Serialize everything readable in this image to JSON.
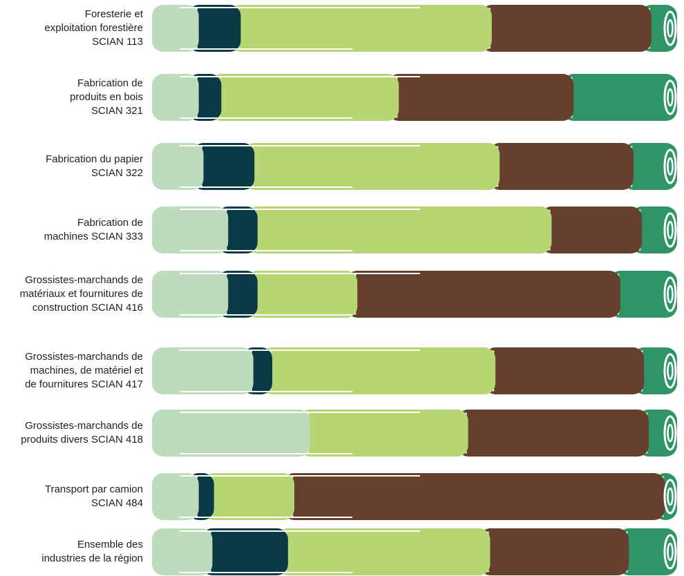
{
  "chart_data": {
    "type": "bar",
    "stacked": true,
    "percent": true,
    "categories": [
      [
        "Foresterie et",
        "exploitation forestière",
        "SCIAN 113"
      ],
      [
        "Fabrication de",
        "produits en bois",
        "SCIAN 321"
      ],
      [
        "Fabrication du papier",
        "SCIAN 322"
      ],
      [
        "Fabrication de",
        "machines SCIAN 333"
      ],
      [
        "Grossistes-marchands de",
        "matériaux et fournitures de",
        "construction SCIAN 416"
      ],
      [
        "Grossistes-marchands de",
        "machines, de matériel et",
        "de fournitures SCIAN 417"
      ],
      [
        "Grossistes-marchands de",
        "produits divers SCIAN 418"
      ],
      [
        "Transport par camion",
        "SCIAN 484"
      ],
      [
        "Ensemble des",
        "industries de la région"
      ]
    ],
    "series": [
      {
        "color": "#bcdcbc",
        "values": [
          6.8,
          6.8,
          7.7,
          12.4,
          12.4,
          17.2,
          28.0,
          6.8,
          9.4
        ]
      },
      {
        "color": "#0b3a47",
        "values": [
          8.0,
          4.3,
          9.7,
          5.6,
          5.6,
          3.6,
          0.0,
          2.9,
          14.4
        ]
      },
      {
        "color": "#b5d672",
        "values": [
          47.8,
          33.8,
          46.7,
          56.0,
          19.0,
          42.5,
          30.1,
          15.3,
          38.5
        ]
      },
      {
        "color": "#663f2d",
        "values": [
          30.4,
          33.3,
          25.5,
          17.2,
          50.1,
          28.3,
          34.4,
          70.6,
          26.4
        ]
      },
      {
        "color": "#2f9466",
        "values": [
          7.0,
          21.8,
          10.4,
          8.8,
          12.9,
          8.4,
          7.5,
          4.4,
          11.3
        ]
      }
    ],
    "title": "",
    "xlabel": "",
    "ylabel": "",
    "xlim": [
      0,
      100
    ],
    "legend": "none",
    "grid": false
  }
}
